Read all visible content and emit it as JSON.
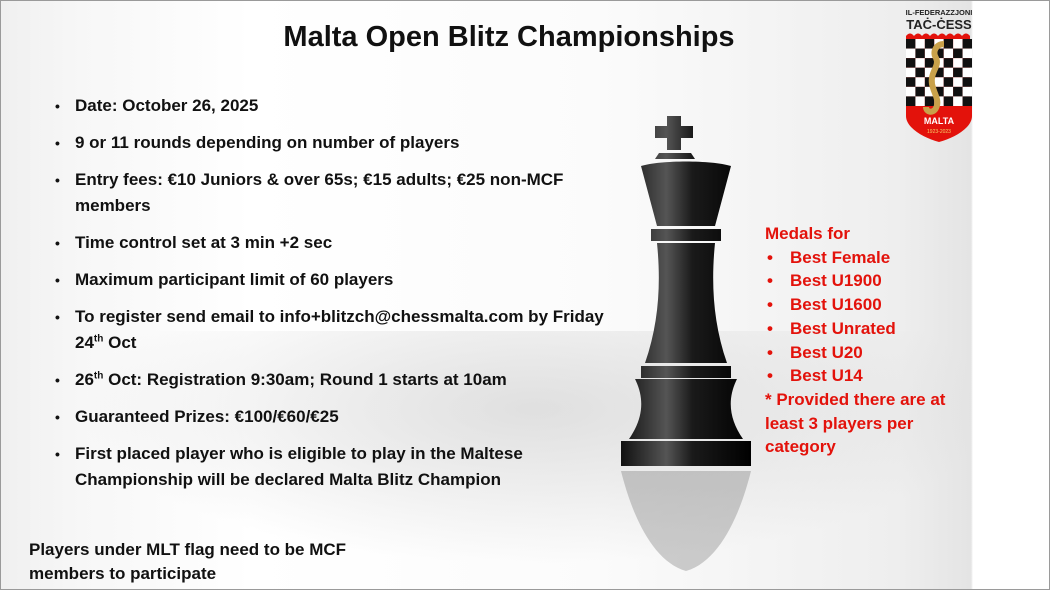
{
  "title": "Malta Open Blitz Championships",
  "bullets": [
    {
      "pre": "Date: October 26, 2025"
    },
    {
      "pre": "9 or 11 rounds depending on number of players"
    },
    {
      "pre": "Entry fees: €10 Juniors & over 65s; €15 adults; €25 non-MCF members"
    },
    {
      "pre": "Time control set at 3 min +2 sec"
    },
    {
      "pre": "Maximum participant limit of 60 players"
    },
    {
      "pre": "To register send email to info+blitzch@chessmalta.com by Friday 24",
      "sup": "th",
      "post": " Oct"
    },
    {
      "pre": "26",
      "sup": "th",
      "post": " Oct: Registration 9:30am; Round 1 starts at 10am"
    },
    {
      "pre": "Guaranteed Prizes: €100/€60/€25"
    },
    {
      "pre": "First placed  player who is eligible to play in the Maltese Championship will be declared Malta Blitz Champion"
    }
  ],
  "footer": "Players under MLT flag need to be MCF members to participate",
  "medals": {
    "heading": "Medals for",
    "items": [
      "Best Female",
      "Best U1900",
      "Best U1600",
      "Best Unrated",
      "Best U20",
      "Best U14"
    ],
    "note": "* Provided there are at least 3 players per category",
    "color": "#e3120b"
  },
  "logo": {
    "line1": "IL-FEDERAZZJONI",
    "line2": "TAĊ-ĊESS",
    "country": "MALTA",
    "years": "1923-2023"
  }
}
